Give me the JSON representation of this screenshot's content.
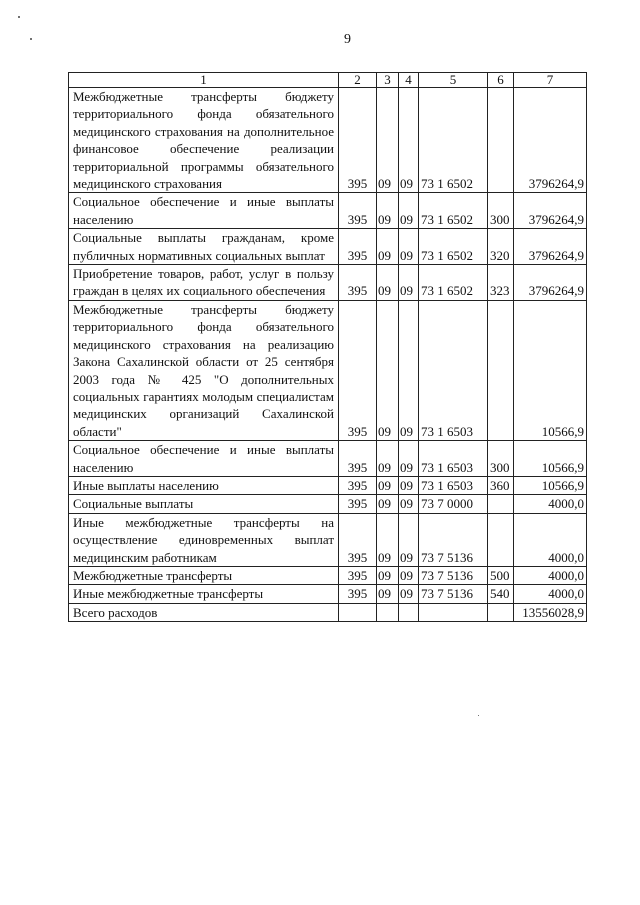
{
  "page_number": "9",
  "table": {
    "headers": [
      "1",
      "2",
      "3",
      "4",
      "5",
      "6",
      "7"
    ],
    "rows": [
      {
        "name": "Межбюджетные трансферты бюджету территориального фонда обязательного медицинского страхования на дополнительное финансовое обеспечение реализации территориальной программы обязательного медицинского страхования",
        "c2": "395",
        "c3": "09",
        "c4": "09",
        "c5": "73 1 6502",
        "c6": "",
        "c7": "3796264,9"
      },
      {
        "name": "Социальное обеспечение и иные выплаты населению",
        "c2": "395",
        "c3": "09",
        "c4": "09",
        "c5": "73 1 6502",
        "c6": "300",
        "c7": "3796264,9"
      },
      {
        "name": "Социальные выплаты гражданам, кроме публичных нормативных социальных выплат",
        "c2": "395",
        "c3": "09",
        "c4": "09",
        "c5": "73 1 6502",
        "c6": "320",
        "c7": "3796264,9"
      },
      {
        "name": "Приобретение товаров, работ, услуг в пользу граждан в целях их социального обеспечения",
        "c2": "395",
        "c3": "09",
        "c4": "09",
        "c5": "73 1 6502",
        "c6": "323",
        "c7": "3796264,9"
      },
      {
        "name": "Межбюджетные трансферты бюджету территориального фонда обязательного медицинского страхования на реализацию Закона Сахалинской области от 25 сентября 2003 года № 425 \"О дополнительных социальных гарантиях молодым специалистам медицинских организаций Сахалинской области\"",
        "c2": "395",
        "c3": "09",
        "c4": "09",
        "c5": "73 1 6503",
        "c6": "",
        "c7": "10566,9"
      },
      {
        "name": "Социальное обеспечение и иные выплаты населению",
        "c2": "395",
        "c3": "09",
        "c4": "09",
        "c5": "73 1 6503",
        "c6": "300",
        "c7": "10566,9"
      },
      {
        "name": "Иные выплаты населению",
        "c2": "395",
        "c3": "09",
        "c4": "09",
        "c5": "73 1 6503",
        "c6": "360",
        "c7": "10566,9"
      },
      {
        "name": "Социальные выплаты",
        "c2": "395",
        "c3": "09",
        "c4": "09",
        "c5": "73 7 0000",
        "c6": "",
        "c7": "4000,0"
      },
      {
        "name": "Иные межбюджетные трансферты на осуществление единовременных выплат медицинским работникам",
        "c2": "395",
        "c3": "09",
        "c4": "09",
        "c5": "73 7 5136",
        "c6": "",
        "c7": "4000,0"
      },
      {
        "name": "Межбюджетные трансферты",
        "c2": "395",
        "c3": "09",
        "c4": "09",
        "c5": "73 7 5136",
        "c6": "500",
        "c7": "4000,0"
      },
      {
        "name": "Иные межбюджетные трансферты",
        "c2": "395",
        "c3": "09",
        "c4": "09",
        "c5": "73 7 5136",
        "c6": "540",
        "c7": "4000,0"
      },
      {
        "name": "Всего расходов",
        "c2": "",
        "c3": "",
        "c4": "",
        "c5": "",
        "c6": "",
        "c7": "13556028,9"
      }
    ]
  }
}
